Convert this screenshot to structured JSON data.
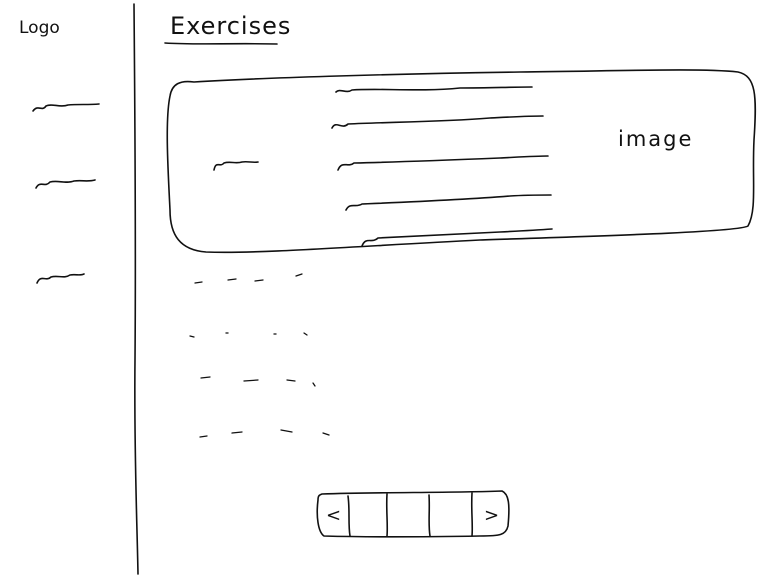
{
  "sidebar": {
    "logo": "Logo",
    "nav_items": [
      "nav-1",
      "nav-2",
      "nav-3"
    ]
  },
  "main": {
    "title": "Exercises",
    "featured_card": {
      "image_label": "image"
    },
    "pagination": {
      "prev_glyph": "<",
      "next_glyph": ">",
      "page_count": 3
    }
  }
}
